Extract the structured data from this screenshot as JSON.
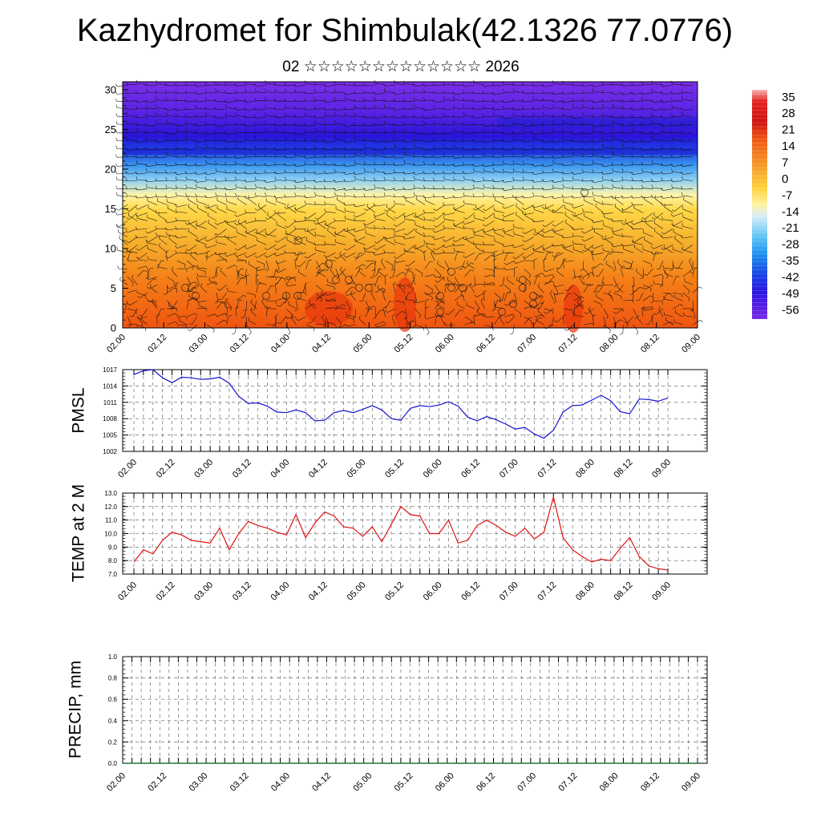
{
  "title": "Kazhydromet for Shimbulak(42.1326 77.0776)",
  "subtitle": "02 ☆☆☆☆☆☆☆☆☆☆☆☆☆ 2026",
  "time_labels": [
    "02.00",
    "02.12",
    "03.00",
    "03.12",
    "04.00",
    "04.12",
    "05.00",
    "05.12",
    "06.00",
    "06.12",
    "07.00",
    "07.12",
    "08.00",
    "08.12",
    "09.00"
  ],
  "colors": {
    "pmsl_line": "#1414d2",
    "temp_line": "#e01010",
    "precip_line": "#1a7a30"
  },
  "chart_data": [
    {
      "type": "heatmap",
      "name": "temperature-wind-profile",
      "title": "",
      "yticks": [
        "0",
        "5",
        "10",
        "15",
        "20",
        "25",
        "30"
      ],
      "ylim": [
        0,
        31
      ],
      "colorbar_labels": [
        "35",
        "28",
        "21",
        "14",
        "7",
        "0",
        "-7",
        "-14",
        "-21",
        "-28",
        "-35",
        "-42",
        "-49",
        "-56"
      ],
      "colorbar_range": [
        -60,
        38
      ],
      "overlay": "wind barbs"
    },
    {
      "type": "line",
      "name": "pmsl",
      "ylabel": "PMSL",
      "ylim": [
        1002,
        1017
      ],
      "yticks": [
        "1002",
        "1005",
        "1008",
        "1011",
        "1014",
        "1017"
      ],
      "values": [
        1016.1,
        1016.8,
        1017.0,
        1015.5,
        1014.6,
        1015.6,
        1015.5,
        1015.2,
        1015.3,
        1015.6,
        1014.5,
        1012.1,
        1010.8,
        1010.9,
        1010.3,
        1009.2,
        1009.1,
        1009.6,
        1009.1,
        1007.6,
        1007.7,
        1009.1,
        1009.5,
        1009.1,
        1009.7,
        1010.4,
        1009.6,
        1008.0,
        1007.7,
        1009.9,
        1010.4,
        1010.2,
        1010.5,
        1011.1,
        1010.3,
        1008.3,
        1007.6,
        1008.4,
        1007.8,
        1007.0,
        1006.1,
        1006.4,
        1005.2,
        1004.4,
        1005.9,
        1009.2,
        1010.4,
        1010.5,
        1011.4,
        1012.3,
        1011.3,
        1009.3,
        1008.9,
        1011.6,
        1011.5,
        1011.2,
        1011.8
      ]
    },
    {
      "type": "line",
      "name": "temp-2m",
      "ylabel": "TEMP at 2 M",
      "ylim": [
        7.0,
        13.0
      ],
      "yticks": [
        "7.0",
        "8.0",
        "9.0",
        "10.0",
        "11.0",
        "12.0",
        "13.0"
      ],
      "values": [
        7.9,
        8.8,
        8.5,
        9.5,
        10.1,
        9.9,
        9.5,
        9.4,
        9.3,
        10.4,
        8.8,
        10.0,
        10.9,
        10.6,
        10.4,
        10.1,
        9.9,
        11.4,
        9.7,
        10.8,
        11.6,
        11.3,
        10.5,
        10.4,
        9.8,
        10.5,
        9.4,
        10.7,
        12.0,
        11.4,
        11.3,
        10.0,
        10.0,
        11.0,
        9.3,
        9.5,
        10.6,
        11.0,
        10.6,
        10.1,
        9.8,
        10.4,
        9.6,
        10.1,
        12.7,
        9.7,
        8.8,
        8.3,
        7.9,
        8.1,
        8.0,
        8.9,
        9.7,
        8.3,
        7.6,
        7.4,
        7.3
      ]
    },
    {
      "type": "line",
      "name": "precip",
      "ylabel": "PRECIP, mm",
      "ylim": [
        0.0,
        1.0
      ],
      "yticks": [
        "0.0",
        "0.2",
        "0.4",
        "0.6",
        "0.8",
        "1.0"
      ],
      "values": [
        0,
        0,
        0,
        0,
        0,
        0,
        0,
        0,
        0,
        0,
        0,
        0,
        0,
        0,
        0,
        0,
        0,
        0,
        0,
        0,
        0,
        0,
        0,
        0,
        0,
        0,
        0,
        0,
        0,
        0,
        0,
        0,
        0,
        0,
        0,
        0,
        0,
        0,
        0,
        0,
        0,
        0,
        0,
        0,
        0,
        0,
        0,
        0,
        0,
        0,
        0,
        0,
        0,
        0,
        0,
        0,
        0,
        0,
        0,
        0,
        0,
        0,
        0
      ]
    }
  ]
}
